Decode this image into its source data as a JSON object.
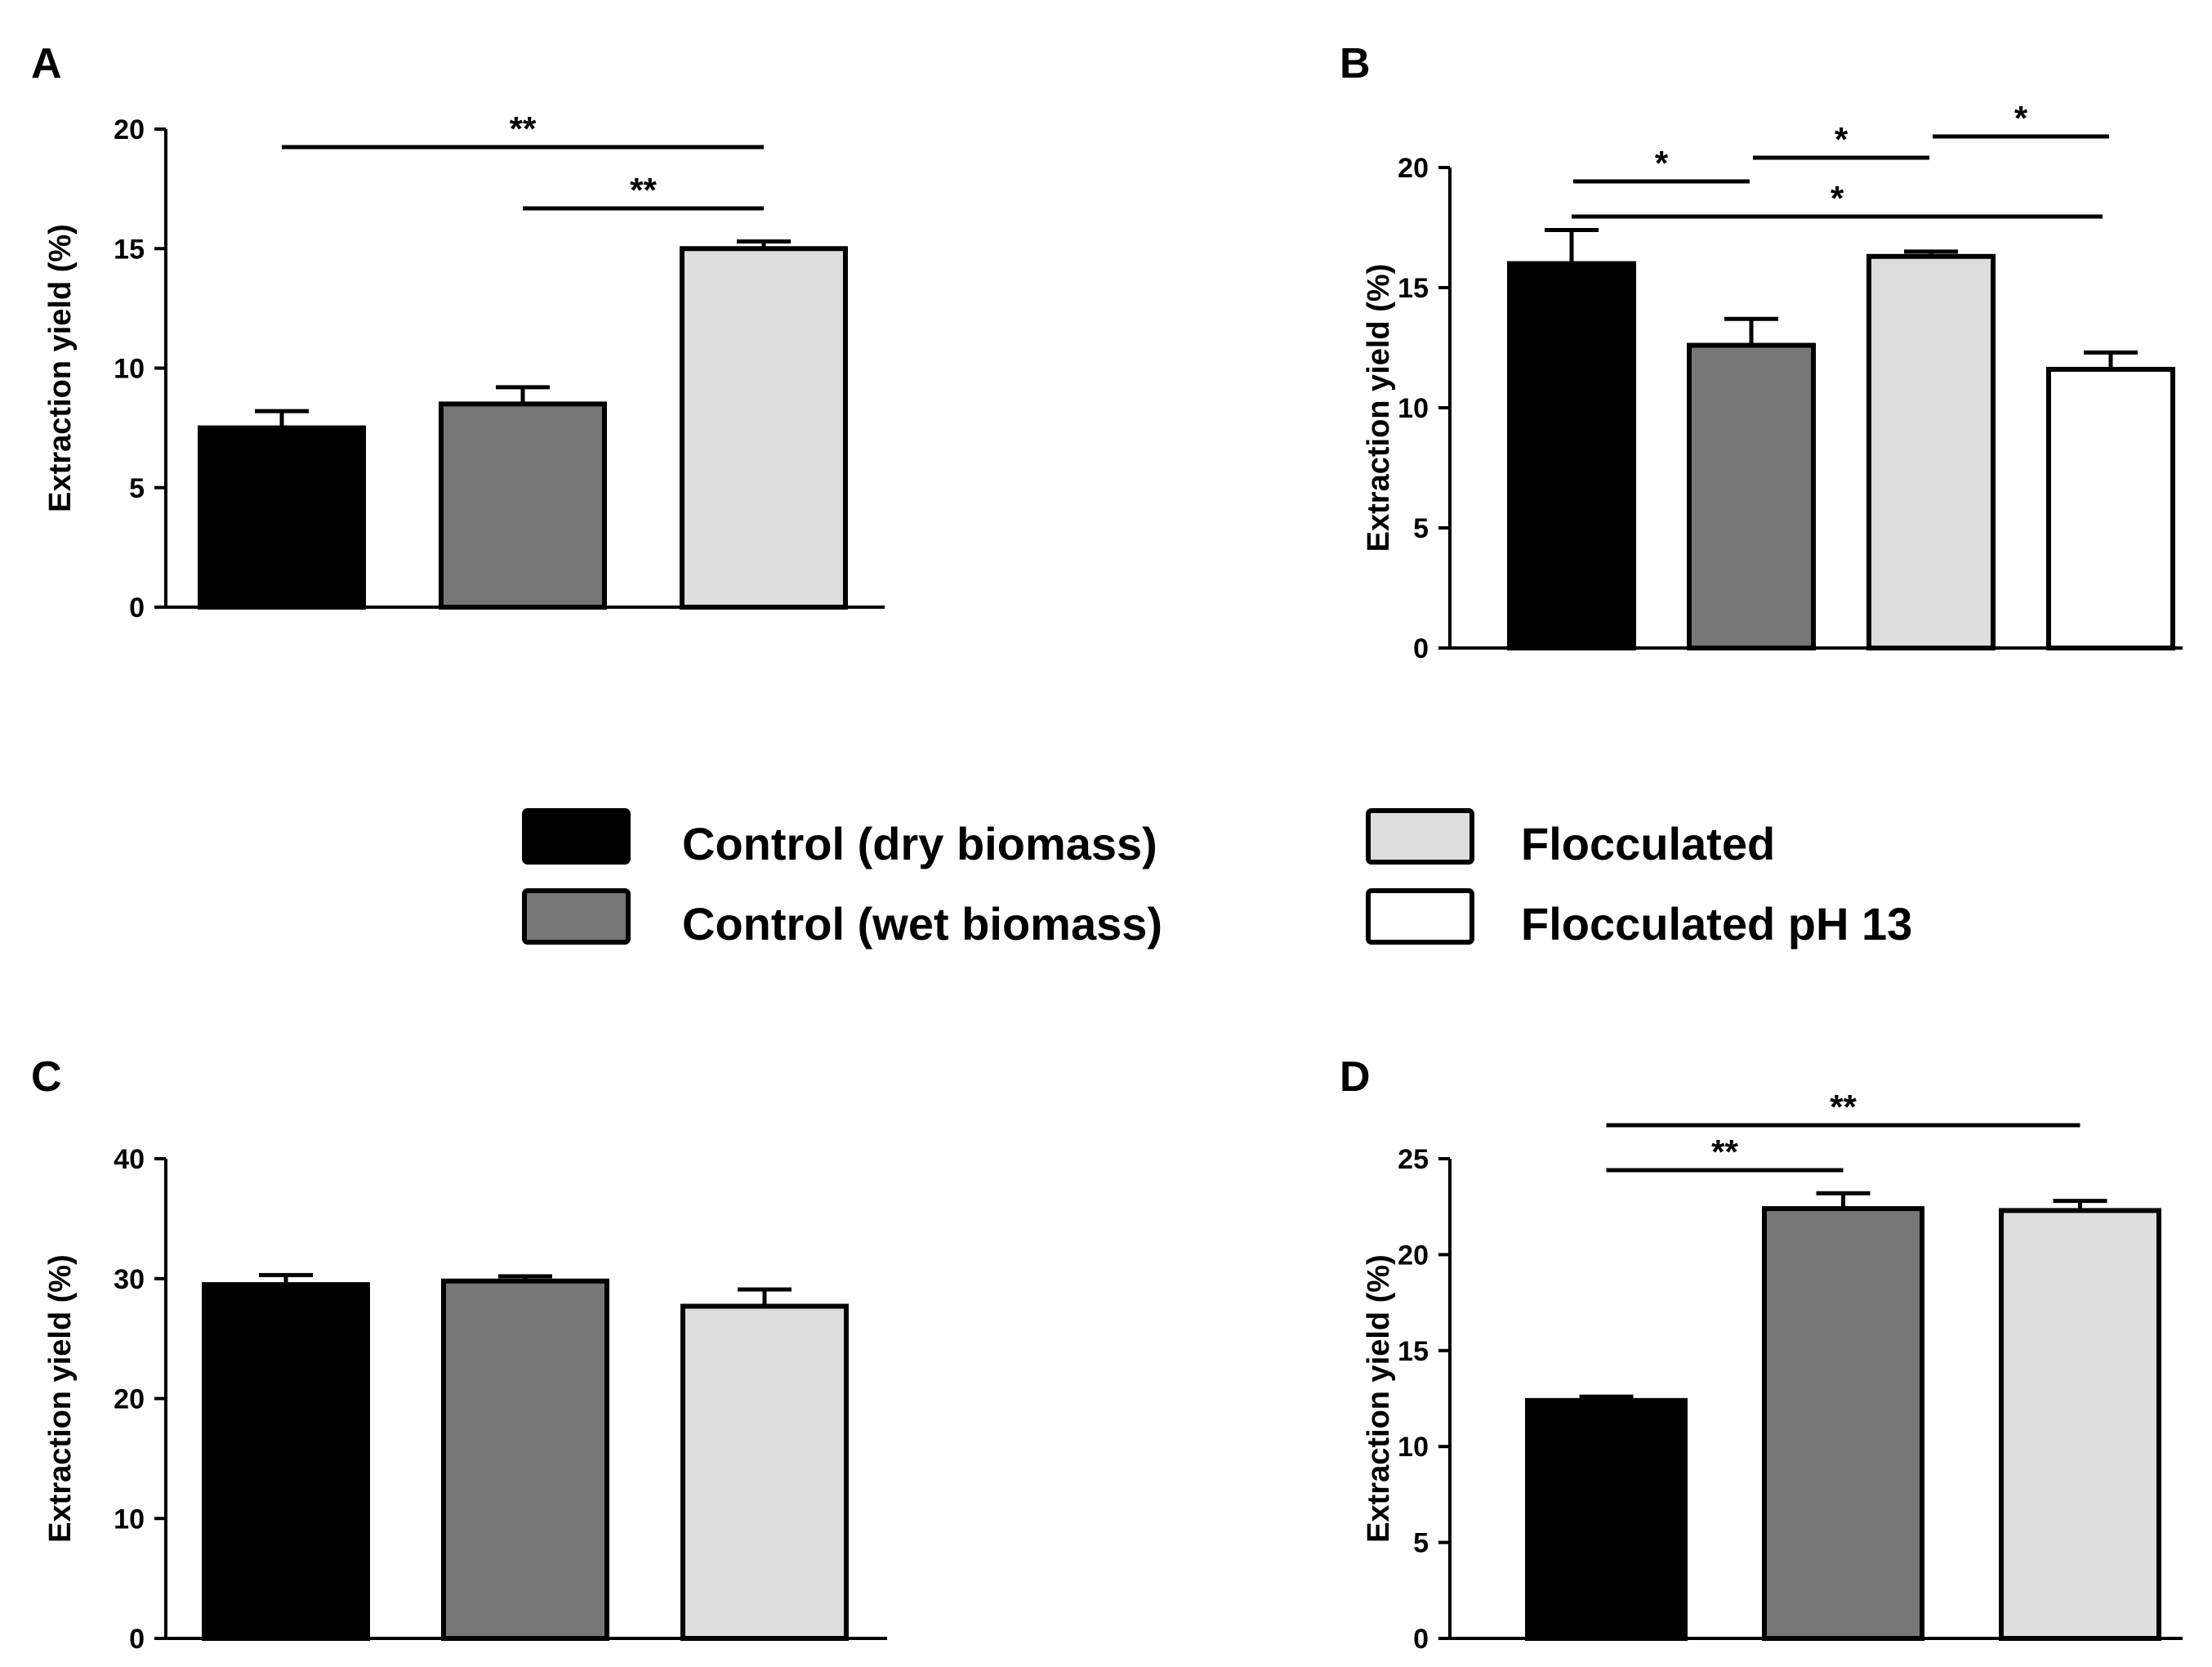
{
  "chart_data": [
    {
      "type": "bar",
      "panel": "A",
      "ylabel": "Extraction yield (%)",
      "ylim": [
        0,
        20
      ],
      "yticks": [
        0,
        5,
        10,
        15,
        20
      ],
      "categories": [
        "Control (dry biomass)",
        "Control (wet biomass)",
        "Flocculated"
      ],
      "values": [
        7.5,
        8.5,
        15.0
      ],
      "errors": [
        0.7,
        0.7,
        0.3
      ],
      "significance": [
        {
          "from": 0,
          "to": 2,
          "label": "**"
        },
        {
          "from": 1,
          "to": 2,
          "label": "**"
        }
      ]
    },
    {
      "type": "bar",
      "panel": "B",
      "ylabel": "Extraction yield (%)",
      "ylim": [
        0,
        20
      ],
      "yticks": [
        0,
        5,
        10,
        15,
        20
      ],
      "categories": [
        "Control (dry biomass)",
        "Control (wet biomass)",
        "Flocculated",
        "Flocculated pH 13"
      ],
      "values": [
        16.0,
        12.6,
        16.3,
        11.6
      ],
      "errors": [
        1.4,
        1.1,
        0.2,
        0.7
      ],
      "significance": [
        {
          "from": 0,
          "to": 1,
          "label": "*"
        },
        {
          "from": 1,
          "to": 2,
          "label": "*"
        },
        {
          "from": 2,
          "to": 3,
          "label": "*"
        },
        {
          "from": 0,
          "to": 3,
          "label": "*"
        }
      ]
    },
    {
      "type": "bar",
      "panel": "C",
      "ylabel": "Extraction yield (%)",
      "ylim": [
        0,
        40
      ],
      "yticks": [
        0,
        10,
        20,
        30,
        40
      ],
      "categories": [
        "Control (dry biomass)",
        "Control (wet biomass)",
        "Flocculated"
      ],
      "values": [
        29.5,
        29.8,
        27.7
      ],
      "errors": [
        0.8,
        0.4,
        1.4
      ],
      "significance": []
    },
    {
      "type": "bar",
      "panel": "D",
      "ylabel": "Extraction yield (%)",
      "ylim": [
        0,
        25
      ],
      "yticks": [
        0,
        5,
        10,
        15,
        20,
        25
      ],
      "categories": [
        "Control (dry biomass)",
        "Control (wet biomass)",
        "Flocculated"
      ],
      "values": [
        12.4,
        22.4,
        22.3
      ],
      "errors": [
        0.2,
        0.8,
        0.5
      ],
      "significance": [
        {
          "from": 0,
          "to": 1,
          "label": "**"
        },
        {
          "from": 0,
          "to": 2,
          "label": "**"
        }
      ]
    }
  ],
  "legend": {
    "items": [
      {
        "label": "Control (dry biomass)",
        "color": "#000000"
      },
      {
        "label": "Control (wet biomass)",
        "color": "#777777"
      },
      {
        "label": "Flocculated",
        "color": "#dddddd"
      },
      {
        "label": "Flocculated pH 13",
        "color": "#ffffff"
      }
    ]
  },
  "colors": {
    "series": [
      "#000000",
      "#777777",
      "#dddddd",
      "#ffffff"
    ],
    "stroke": "#000000"
  }
}
